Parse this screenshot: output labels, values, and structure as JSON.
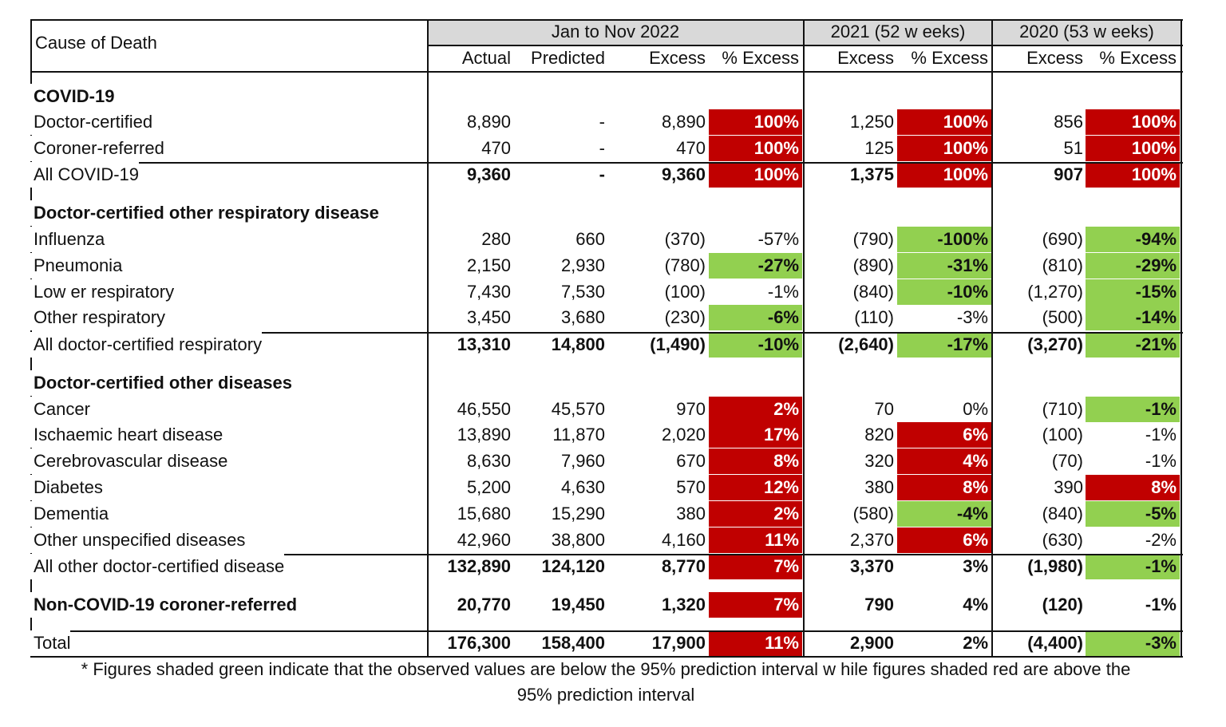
{
  "header": {
    "cause_label": "Cause of Death",
    "groups": [
      "Jan to Nov 2022",
      "2021 (52 w eeks)",
      "2020 (53 w eeks)"
    ],
    "sub": [
      "Actual",
      "Predicted",
      "Excess",
      "% Excess",
      "Excess",
      "% Excess",
      "Excess",
      "% Excess"
    ]
  },
  "colors": {
    "red_shade": "#c00000",
    "green_shade": "#92d050",
    "header_bg": "#d9d9d9"
  },
  "rows": [
    {
      "type": "section",
      "label": "COVID-19"
    },
    {
      "label": "Doctor-certified",
      "v": [
        "8,890",
        "-",
        "8,890",
        "100%",
        "1,250",
        "100%",
        "856",
        "100%"
      ],
      "s": [
        "r",
        "r",
        "r"
      ]
    },
    {
      "label": "Coroner-referred",
      "v": [
        "470",
        "-",
        "470",
        "100%",
        "125",
        "100%",
        "51",
        "100%"
      ],
      "s": [
        "r",
        "r",
        "r"
      ]
    },
    {
      "label": "All COVID-19",
      "total": true,
      "v": [
        "9,360",
        "-",
        "9,360",
        "100%",
        "1,375",
        "100%",
        "907",
        "100%"
      ],
      "s": [
        "r",
        "r",
        "r"
      ]
    },
    {
      "type": "section",
      "label": "Doctor-certified other respiratory disease"
    },
    {
      "label": "Influenza",
      "v": [
        "280",
        "660",
        "(370)",
        "-57%",
        "(790)",
        "-100%",
        "(690)",
        "-94%"
      ],
      "s": [
        "",
        "g",
        "g"
      ]
    },
    {
      "label": "Pneumonia",
      "v": [
        "2,150",
        "2,930",
        "(780)",
        "-27%",
        "(890)",
        "-31%",
        "(810)",
        "-29%"
      ],
      "s": [
        "g",
        "g",
        "g"
      ]
    },
    {
      "label": "Low er respiratory",
      "v": [
        "7,430",
        "7,530",
        "(100)",
        "-1%",
        "(840)",
        "-10%",
        "(1,270)",
        "-15%"
      ],
      "s": [
        "",
        "g",
        "g"
      ]
    },
    {
      "label": "Other respiratory",
      "v": [
        "3,450",
        "3,680",
        "(230)",
        "-6%",
        "(110)",
        "-3%",
        "(500)",
        "-14%"
      ],
      "s": [
        "g",
        "",
        "g"
      ]
    },
    {
      "label": "All doctor-certified respiratory",
      "total": true,
      "v": [
        "13,310",
        "14,800",
        "(1,490)",
        "-10%",
        "(2,640)",
        "-17%",
        "(3,270)",
        "-21%"
      ],
      "s": [
        "g",
        "g",
        "g"
      ]
    },
    {
      "type": "section",
      "label": "Doctor-certified other diseases"
    },
    {
      "label": "Cancer",
      "v": [
        "46,550",
        "45,570",
        "970",
        "2%",
        "70",
        "0%",
        "(710)",
        "-1%"
      ],
      "s": [
        "r",
        "",
        "g"
      ]
    },
    {
      "label": "Ischaemic heart disease",
      "v": [
        "13,890",
        "11,870",
        "2,020",
        "17%",
        "820",
        "6%",
        "(100)",
        "-1%"
      ],
      "s": [
        "r",
        "r",
        ""
      ]
    },
    {
      "label": "Cerebrovascular disease",
      "v": [
        "8,630",
        "7,960",
        "670",
        "8%",
        "320",
        "4%",
        "(70)",
        "-1%"
      ],
      "s": [
        "r",
        "r",
        ""
      ]
    },
    {
      "label": "Diabetes",
      "v": [
        "5,200",
        "4,630",
        "570",
        "12%",
        "380",
        "8%",
        "390",
        "8%"
      ],
      "s": [
        "r",
        "r",
        "r"
      ]
    },
    {
      "label": "Dementia",
      "v": [
        "15,680",
        "15,290",
        "380",
        "2%",
        "(580)",
        "-4%",
        "(840)",
        "-5%"
      ],
      "s": [
        "r",
        "g",
        "g"
      ]
    },
    {
      "label": "Other unspecified diseases",
      "v": [
        "42,960",
        "38,800",
        "4,160",
        "11%",
        "2,370",
        "6%",
        "(630)",
        "-2%"
      ],
      "s": [
        "r",
        "r",
        ""
      ]
    },
    {
      "label": "All other doctor-certified disease",
      "total": true,
      "v": [
        "132,890",
        "124,120",
        "8,770",
        "7%",
        "3,370",
        "3%",
        "(1,980)",
        "-1%"
      ],
      "s": [
        "r",
        "",
        "g"
      ]
    },
    {
      "label": "Non-COVID-19 coroner-referred",
      "total": true,
      "boldlabel": true,
      "v": [
        "20,770",
        "19,450",
        "1,320",
        "7%",
        "790",
        "4%",
        "(120)",
        "-1%"
      ],
      "s": [
        "r",
        "",
        ""
      ]
    },
    {
      "label": "Total",
      "total": true,
      "v": [
        "176,300",
        "158,400",
        "17,900",
        "11%",
        "2,900",
        "2%",
        "(4,400)",
        "-3%"
      ],
      "s": [
        "r",
        "",
        "g"
      ]
    }
  ],
  "footnote": [
    "* Figures shaded green indicate that the observed values are below  the 95% prediction interval w hile figures shaded red are above the",
    "95% prediction interval"
  ]
}
